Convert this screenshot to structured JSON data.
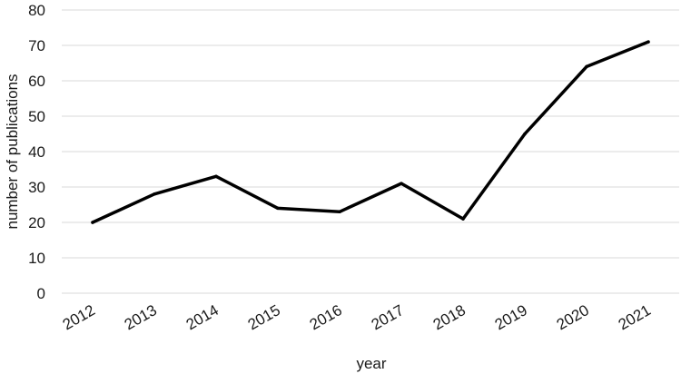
{
  "chart_data": {
    "type": "line",
    "title": "",
    "xlabel": "year",
    "ylabel": "number of publications",
    "x": [
      "2012",
      "2013",
      "2014",
      "2015",
      "2016",
      "2017",
      "2018",
      "2019",
      "2020",
      "2021"
    ],
    "series": [
      {
        "values": [
          20,
          28,
          33,
          24,
          23,
          31,
          21,
          45,
          64,
          71
        ]
      }
    ],
    "ylim": [
      0,
      80
    ],
    "yticks": [
      0,
      10,
      20,
      30,
      40,
      50,
      60,
      70,
      80
    ],
    "grid": true,
    "legend": "none",
    "colors": {
      "line": "#000000",
      "grid": "#d9d9d9",
      "text": "#1a1a1a"
    }
  }
}
